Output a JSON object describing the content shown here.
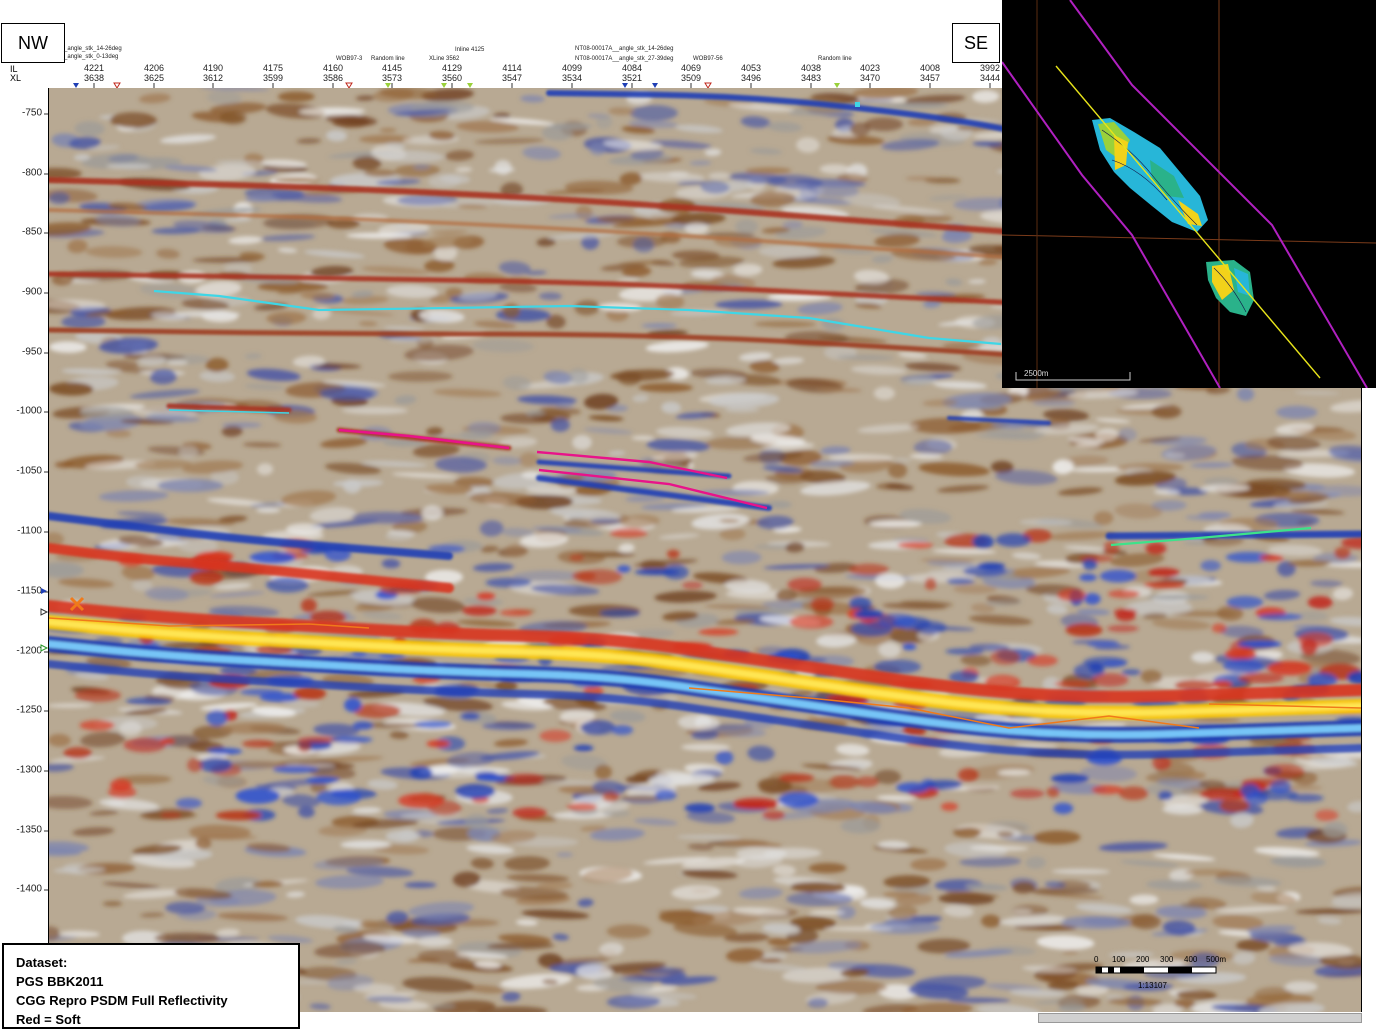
{
  "orientation": {
    "left": "NW",
    "right": "SE"
  },
  "axis_row_labels": {
    "il": "IL",
    "xl": "XL"
  },
  "traces": [
    {
      "il": "4221",
      "xl": "3638"
    },
    {
      "il": "4206",
      "xl": "3625"
    },
    {
      "il": "4190",
      "xl": "3612"
    },
    {
      "il": "4175",
      "xl": "3599"
    },
    {
      "il": "4160",
      "xl": "3586"
    },
    {
      "il": "4145",
      "xl": "3573"
    },
    {
      "il": "4129",
      "xl": "3560"
    },
    {
      "il": "4114",
      "xl": "3547"
    },
    {
      "il": "4099",
      "xl": "3534"
    },
    {
      "il": "4084",
      "xl": "3521"
    },
    {
      "il": "4069",
      "xl": "3509"
    },
    {
      "il": "4053",
      "xl": "3496"
    },
    {
      "il": "4038",
      "xl": "3483"
    },
    {
      "il": "4023",
      "xl": "3470"
    },
    {
      "il": "4008",
      "xl": "3457"
    },
    {
      "il": "3992",
      "xl": "3444"
    }
  ],
  "intersection_labels": {
    "angle_14_26_left": "_angle_stk_14-26deg",
    "angle_0_13_left": "_angle_stk_0-13deg",
    "wob97_3": "WOB97-3",
    "random_line_1": "Random line",
    "inline_4125": "Inline 4125",
    "xline_3562": "XLine 3562",
    "nt08_14_26": "NT08-00017A__angle_stk_14-26deg",
    "nt08_27_39": "NT08-00017A__angle_stk_27-39deg",
    "wob97_56": "WOB97-56",
    "random_line_2": "Random line"
  },
  "depth_axis": {
    "ticks": [
      "-750",
      "-800",
      "-850",
      "-900",
      "-950",
      "-1000",
      "-1050",
      "-1100",
      "-1150",
      "-1200",
      "-1250",
      "-1300",
      "-1350",
      "-1400"
    ]
  },
  "dataset_info": {
    "heading": "Dataset:",
    "survey": "PGS BBK2011",
    "processing": "CGG Repro PSDM Full Reflectivity",
    "polarity": "Red = Soft"
  },
  "map_inset": {
    "scale_label": "2500m"
  },
  "scale_bar": {
    "ticks": [
      "0",
      "100",
      "200",
      "300",
      "400",
      "500m"
    ],
    "ratio": "1:13107"
  },
  "colors": {
    "soft_red": "#c0281c",
    "hard_blue": "#1f3fb5",
    "bright_yellow": "#ffe000",
    "cyan_horizon": "#3fd6e6",
    "magenta_horizon": "#e8138a",
    "orange_horizon": "#f07a1a",
    "green_horizon": "#3de28a"
  }
}
